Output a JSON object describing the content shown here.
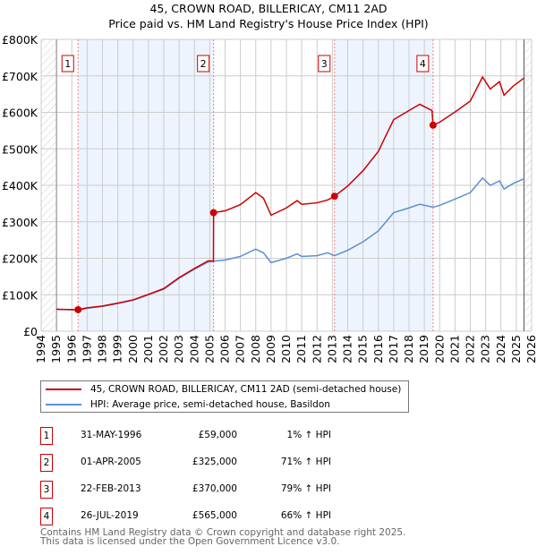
{
  "chart_data": {
    "type": "line",
    "title": "45, CROWN ROAD, BILLERICAY, CM11 2AD",
    "subtitle": "Price paid vs. HM Land Registry's House Price Index (HPI)",
    "xlim": [
      1994,
      2026
    ],
    "ylim": [
      0,
      800000
    ],
    "y_ticks": [
      {
        "v": 0,
        "label": "£0"
      },
      {
        "v": 100000,
        "label": "£100K"
      },
      {
        "v": 200000,
        "label": "£200K"
      },
      {
        "v": 300000,
        "label": "£300K"
      },
      {
        "v": 400000,
        "label": "£400K"
      },
      {
        "v": 500000,
        "label": "£500K"
      },
      {
        "v": 600000,
        "label": "£600K"
      },
      {
        "v": 700000,
        "label": "£700K"
      },
      {
        "v": 800000,
        "label": "£800K"
      }
    ],
    "x_ticks": [
      "1994",
      "1995",
      "1996",
      "1997",
      "1998",
      "1999",
      "2000",
      "2001",
      "2002",
      "2003",
      "2004",
      "2005",
      "2006",
      "2007",
      "2008",
      "2009",
      "2010",
      "2011",
      "2012",
      "2013",
      "2014",
      "2015",
      "2016",
      "2017",
      "2018",
      "2019",
      "2020",
      "2021",
      "2022",
      "2023",
      "2024",
      "2025",
      "2026"
    ],
    "grid": true,
    "data_range": [
      1995,
      2025.5
    ],
    "series": [
      {
        "name": "45, CROWN ROAD, BILLERICAY, CM11 2AD (semi-detached house)",
        "color": "#cc0000",
        "x": [
          1995,
          1996.41,
          1997,
          1998,
          1999,
          2000,
          2001,
          2002,
          2003,
          2004,
          2004.9,
          2005.24,
          2005.25,
          2006,
          2007,
          2008,
          2008.5,
          2009,
          2010,
          2010.7,
          2011,
          2012,
          2012.7,
          2013.14,
          2014,
          2015,
          2016,
          2016.5,
          2017,
          2018,
          2018.7,
          2019.5,
          2019.57,
          2020,
          2021,
          2022,
          2022.8,
          2023.3,
          2023.9,
          2024.2,
          2024.8,
          2025.5
        ],
        "y": [
          60000,
          59000,
          64000,
          69000,
          77000,
          86000,
          101000,
          117000,
          147000,
          172000,
          193000,
          192000,
          325000,
          330000,
          347000,
          380000,
          365000,
          318000,
          338000,
          358000,
          348000,
          352000,
          360000,
          370000,
          398000,
          440000,
          493000,
          537000,
          580000,
          605000,
          622000,
          605000,
          565000,
          573000,
          601000,
          631000,
          697000,
          664000,
          684000,
          647000,
          672000,
          694000
        ]
      },
      {
        "name": "HPI: Average price, semi-detached house, Basildon",
        "color": "#5b8fd4",
        "x": [
          1995,
          1996.41,
          1997,
          1998,
          1999,
          2000,
          2001,
          2002,
          2003,
          2004,
          2004.9,
          2005.25,
          2006,
          2007,
          2008,
          2008.5,
          2009,
          2010,
          2010.7,
          2011,
          2012,
          2012.7,
          2013.14,
          2014,
          2015,
          2016,
          2016.5,
          2017,
          2018,
          2018.7,
          2019.57,
          2020,
          2021,
          2022,
          2022.8,
          2023.3,
          2023.9,
          2024.2,
          2024.8,
          2025.5
        ],
        "y": [
          60000,
          58000,
          63000,
          68000,
          76000,
          85000,
          100000,
          115000,
          145000,
          170000,
          190000,
          192000,
          195000,
          205000,
          225000,
          215000,
          188000,
          200000,
          212000,
          205000,
          207000,
          215000,
          207000,
          222000,
          245000,
          275000,
          300000,
          325000,
          338000,
          348000,
          340000,
          345000,
          362000,
          380000,
          420000,
          400000,
          412000,
          390000,
          405000,
          418000
        ]
      }
    ],
    "sales": [
      {
        "n": "1",
        "x": 1996.41,
        "price": 59000,
        "date": "31-MAY-1996",
        "price_label": "£59,000",
        "hpi": "1% ↑ HPI"
      },
      {
        "n": "2",
        "x": 2005.25,
        "price": 325000,
        "date": "01-APR-2005",
        "price_label": "£325,000",
        "hpi": "71% ↑ HPI"
      },
      {
        "n": "3",
        "x": 2013.14,
        "price": 370000,
        "date": "22-FEB-2013",
        "price_label": "£370,000",
        "hpi": "79% ↑ HPI"
      },
      {
        "n": "4",
        "x": 2019.57,
        "price": 565000,
        "date": "26-JUL-2019",
        "price_label": "£565,000",
        "hpi": "66% ↑ HPI"
      }
    ]
  },
  "footer": [
    "Contains HM Land Registry data © Crown copyright and database right 2025.",
    "This data is licensed under the Open Government Licence v3.0."
  ]
}
